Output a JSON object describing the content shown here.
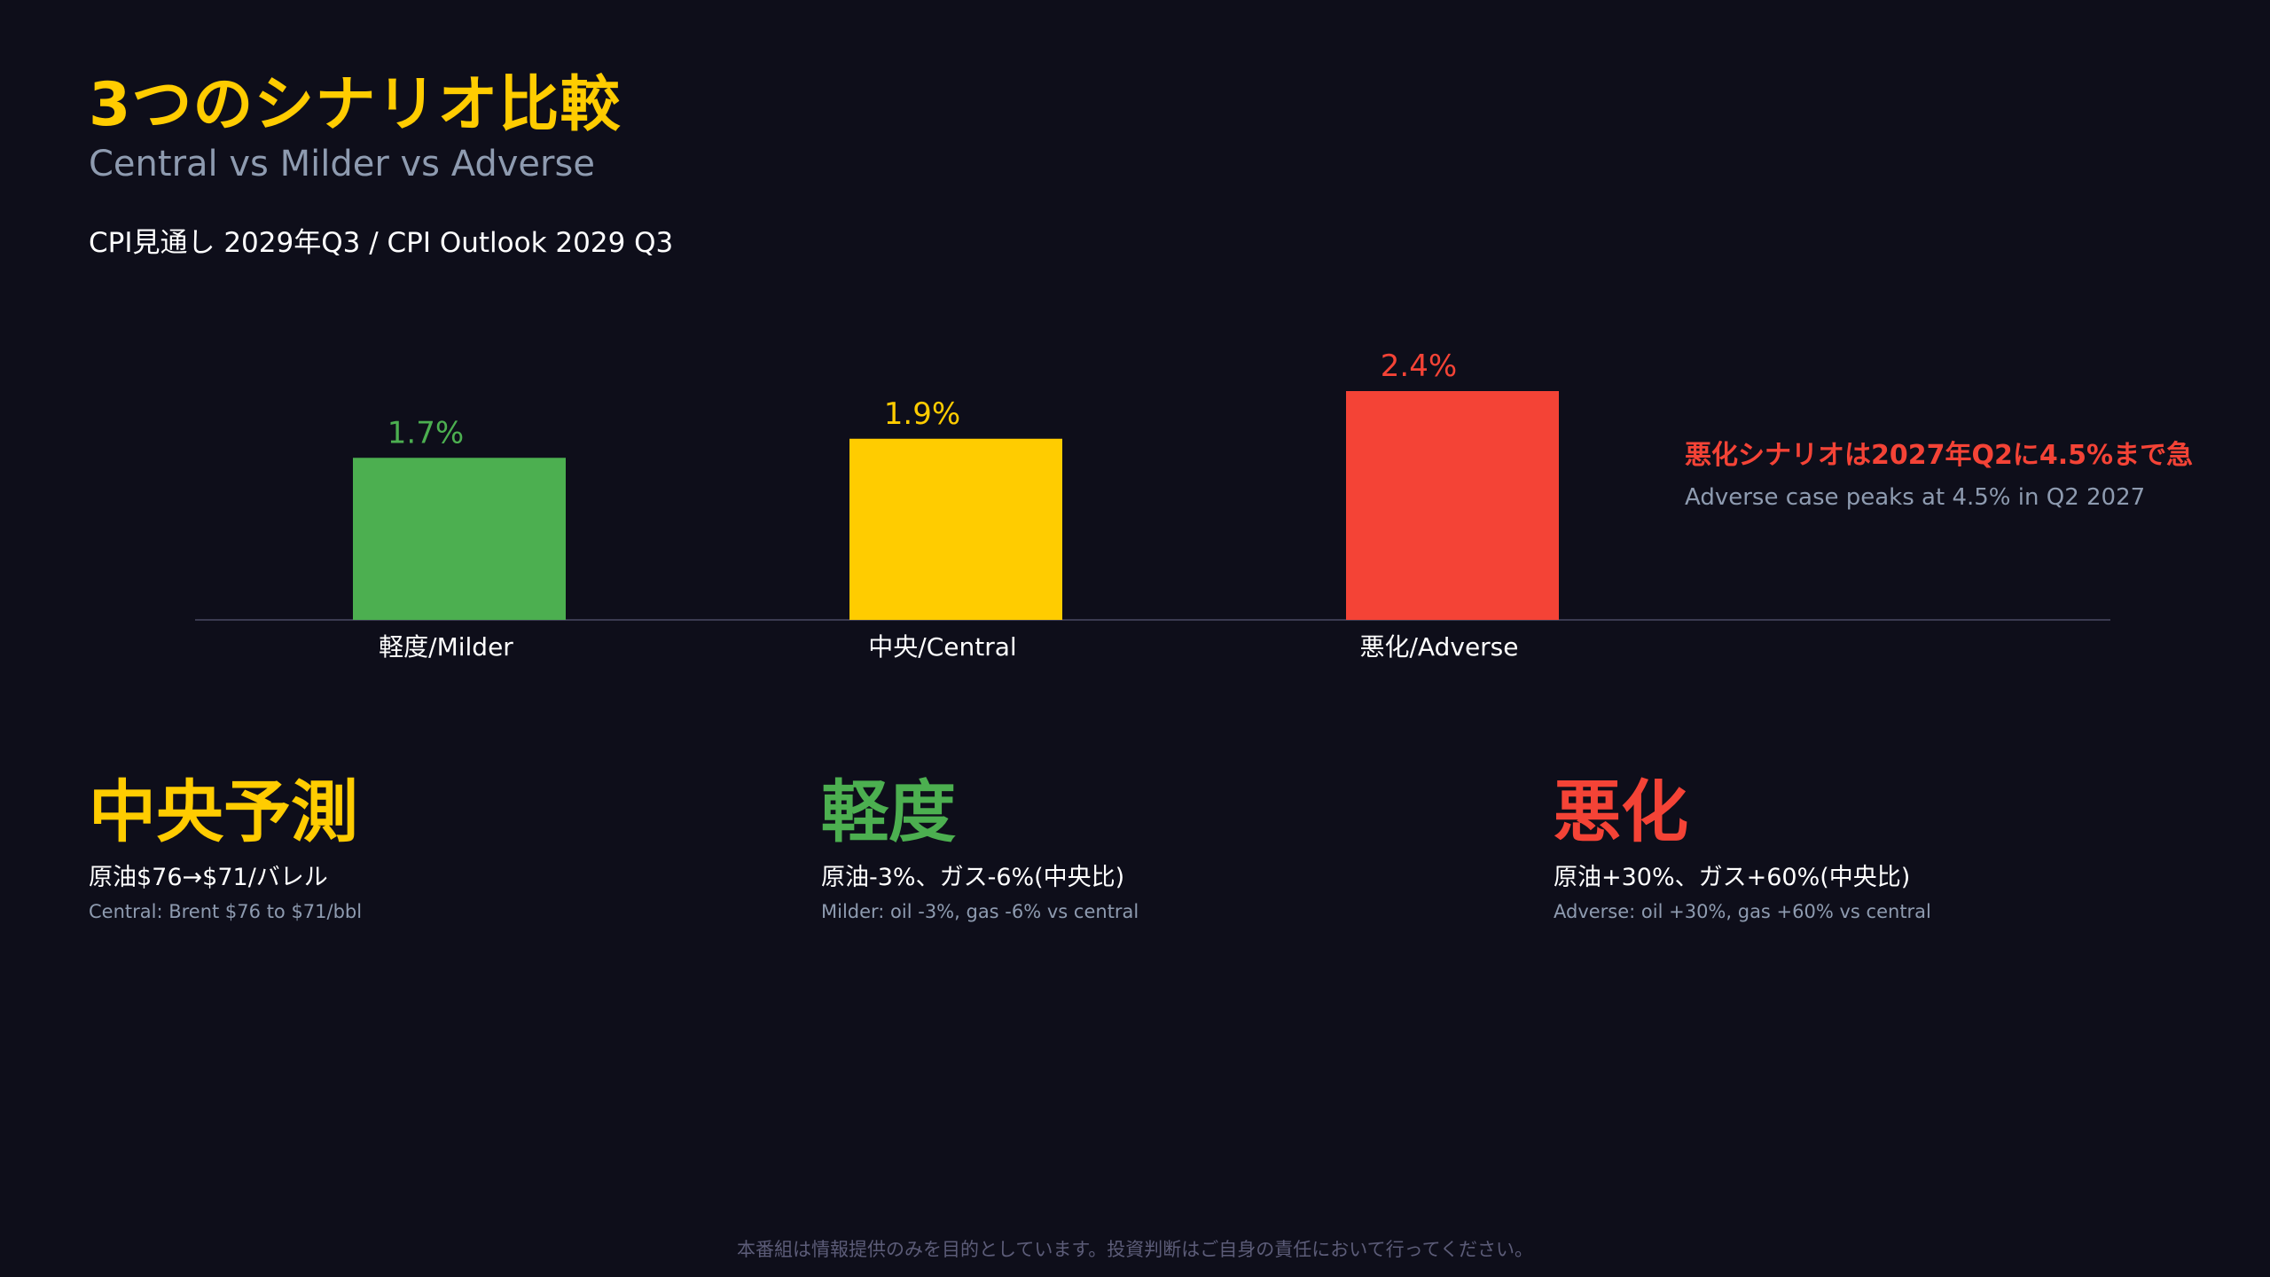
{
  "title": "3つのシナリオ比較",
  "subtitle": "Central vs Milder vs Adverse",
  "chart_heading": "CPI見通し 2029年Q3 / CPI Outlook 2029 Q3",
  "chart_data": {
    "type": "bar",
    "title": "CPI見通し 2029年Q3 / CPI Outlook 2029 Q3",
    "categories": [
      "軽度/Milder",
      "中央/Central",
      "悪化/Adverse"
    ],
    "values": [
      1.7,
      1.9,
      2.4
    ],
    "value_labels": [
      "1.7%",
      "1.9%",
      "2.4%"
    ],
    "colors": [
      "#4caf50",
      "#ffcc00",
      "#f44336"
    ],
    "ylim": [
      0,
      2.6
    ],
    "grid": false,
    "legend": "none"
  },
  "annotation": {
    "title": "悪化シナリオは2027年Q2に4.5%まで急",
    "subtitle": "Adverse case peaks at 4.5% in Q2 2027",
    "color": "#f44336"
  },
  "cards": [
    {
      "title": "中央予測",
      "color": "#ffcc00",
      "jp": "原油$76→$71/バレル",
      "en": "Central: Brent $76 to $71/bbl"
    },
    {
      "title": "軽度",
      "color": "#4caf50",
      "jp": "原油-3%、ガス-6%(中央比)",
      "en": "Milder: oil -3%, gas -6% vs central"
    },
    {
      "title": "悪化",
      "color": "#f44336",
      "jp": "原油+30%、ガス+60%(中央比)",
      "en": "Adverse: oil +30%, gas +60% vs central"
    }
  ],
  "disclaimer": "本番組は情報提供のみを目的としています。投資判断はご自身の責任において行ってください。"
}
